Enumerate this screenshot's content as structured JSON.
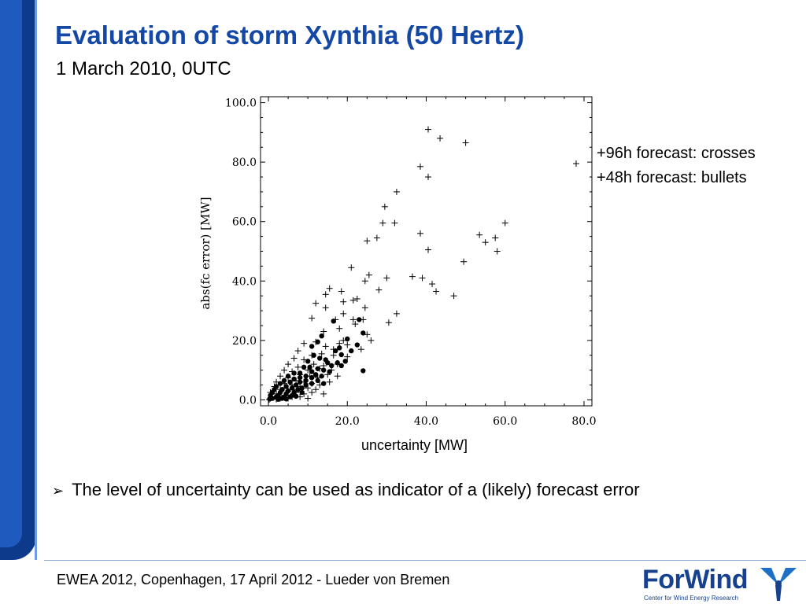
{
  "slide": {
    "title": "Evaluation of storm Xynthia (50 Hertz)",
    "subtitle": "1 March 2010, 0UTC",
    "legend_crosses": "+96h forecast: crosses",
    "legend_bullets": "+48h forecast: bullets",
    "bullet_arrow": "➢",
    "bullet_text": "The level of uncertainty can  be used as indicator of a (likely) forecast error",
    "footer": "EWEA 2012, Copenhagen, 17 April 2012  - Lueder von Bremen",
    "logo_name": "ForWind",
    "logo_tagline": "Center for Wind Energy Research",
    "accent_color": "#1448a6",
    "sidebar_color": "#0d3a8a"
  },
  "chart_data": {
    "type": "scatter",
    "xlabel": "uncertainty [MW]",
    "ylabel": "abs(fc error) [MW]",
    "xlim": [
      -2,
      82
    ],
    "ylim": [
      -2,
      102
    ],
    "xticks": [
      "0.0",
      "20.0",
      "40.0",
      "60.0",
      "80.0"
    ],
    "yticks": [
      "0.0",
      "20.0",
      "40.0",
      "60.0",
      "80.0",
      "100.0"
    ],
    "series": [
      {
        "marker": "cross",
        "points": [
          [
            40.5,
            91
          ],
          [
            43.5,
            88
          ],
          [
            50,
            86.5
          ],
          [
            78,
            79.5
          ],
          [
            38.5,
            78.5
          ],
          [
            40.5,
            75
          ],
          [
            32.5,
            70
          ],
          [
            29.5,
            65
          ],
          [
            29,
            59.5
          ],
          [
            32,
            59.5
          ],
          [
            38.5,
            56
          ],
          [
            53.5,
            55.5
          ],
          [
            55,
            53
          ],
          [
            57.5,
            54.5
          ],
          [
            60,
            59.5
          ],
          [
            27.5,
            54.5
          ],
          [
            25,
            53.5
          ],
          [
            40.5,
            50.5
          ],
          [
            58,
            50
          ],
          [
            49.5,
            46.5
          ],
          [
            21,
            44.5
          ],
          [
            36.5,
            41.5
          ],
          [
            39,
            41
          ],
          [
            30,
            41
          ],
          [
            25.5,
            42
          ],
          [
            24.5,
            40
          ],
          [
            41.5,
            39
          ],
          [
            42.5,
            36.5
          ],
          [
            47,
            35
          ],
          [
            15.5,
            37.5
          ],
          [
            14.5,
            35.5
          ],
          [
            18.5,
            36.5
          ],
          [
            28,
            37
          ],
          [
            22.5,
            34
          ],
          [
            21.5,
            33.5
          ],
          [
            19,
            33
          ],
          [
            12,
            32.5
          ],
          [
            14.5,
            31
          ],
          [
            24.5,
            31
          ],
          [
            32.5,
            29
          ],
          [
            19,
            29
          ],
          [
            17,
            27
          ],
          [
            11,
            27.5
          ],
          [
            21.5,
            27
          ],
          [
            24,
            27
          ],
          [
            30.5,
            26
          ],
          [
            22,
            25.5
          ],
          [
            18,
            24
          ],
          [
            14,
            23
          ],
          [
            25,
            22
          ],
          [
            26,
            20
          ],
          [
            19,
            20
          ],
          [
            18,
            19
          ],
          [
            20,
            18.5
          ],
          [
            9,
            19
          ],
          [
            12,
            19.5
          ],
          [
            14.5,
            18
          ],
          [
            16.5,
            17
          ],
          [
            23.5,
            17
          ],
          [
            7.5,
            16.5
          ],
          [
            11,
            15
          ],
          [
            13.5,
            15.5
          ],
          [
            16.5,
            15
          ],
          [
            20,
            14.5
          ],
          [
            6.5,
            14
          ],
          [
            9,
            13.5
          ],
          [
            11.5,
            12
          ],
          [
            14,
            11.5
          ],
          [
            17.5,
            12
          ],
          [
            5,
            12
          ],
          [
            7.5,
            11
          ],
          [
            10,
            10
          ],
          [
            13,
            10.5
          ],
          [
            16,
            10
          ],
          [
            4,
            10
          ],
          [
            6,
            9.5
          ],
          [
            8,
            8.5
          ],
          [
            10.5,
            8
          ],
          [
            12.5,
            7.5
          ],
          [
            15,
            8.5
          ],
          [
            17.5,
            8
          ],
          [
            3,
            8
          ],
          [
            5,
            7.5
          ],
          [
            7,
            6.5
          ],
          [
            9,
            6
          ],
          [
            11,
            5.5
          ],
          [
            13,
            5
          ],
          [
            15.5,
            6
          ],
          [
            2,
            6
          ],
          [
            4,
            5.5
          ],
          [
            6,
            5
          ],
          [
            8,
            4.5
          ],
          [
            10,
            4
          ],
          [
            12,
            3.5
          ],
          [
            1.5,
            4.5
          ],
          [
            3,
            3.5
          ],
          [
            5,
            3
          ],
          [
            7,
            2.5
          ],
          [
            9,
            2
          ],
          [
            11,
            2.5
          ],
          [
            0.5,
            2.5
          ],
          [
            2,
            2
          ],
          [
            4,
            1.5
          ],
          [
            6,
            1
          ],
          [
            8,
            1
          ],
          [
            10,
            0.5
          ],
          [
            1,
            1
          ],
          [
            3,
            0.5
          ],
          [
            5,
            0.5
          ],
          [
            0.5,
            0.5
          ],
          [
            2,
            0.2
          ],
          [
            0.2,
            0.1
          ],
          [
            6.5,
            3.5
          ],
          [
            14,
            2
          ]
        ]
      },
      {
        "marker": "bullet",
        "points": [
          [
            16.5,
            26.5
          ],
          [
            23,
            27
          ],
          [
            24,
            22.5
          ],
          [
            24,
            9.8
          ],
          [
            20,
            20.5
          ],
          [
            21,
            16.5
          ],
          [
            22.5,
            18.5
          ],
          [
            18,
            17.5
          ],
          [
            17,
            16.5
          ],
          [
            18.5,
            15.2
          ],
          [
            19.5,
            13
          ],
          [
            17.5,
            12.5
          ],
          [
            18.5,
            11.5
          ],
          [
            12.5,
            19.5
          ],
          [
            13.5,
            21.5
          ],
          [
            11,
            18
          ],
          [
            11.5,
            15
          ],
          [
            13,
            14
          ],
          [
            14.5,
            13.5
          ],
          [
            15,
            12.5
          ],
          [
            16,
            11.5
          ],
          [
            10,
            13
          ],
          [
            10.5,
            11
          ],
          [
            12.5,
            10.5
          ],
          [
            14,
            10
          ],
          [
            15.5,
            9.5
          ],
          [
            9,
            11
          ],
          [
            11,
            9.5
          ],
          [
            12,
            8.5
          ],
          [
            13.5,
            8
          ],
          [
            8,
            9
          ],
          [
            9.5,
            8
          ],
          [
            11,
            7.5
          ],
          [
            12.5,
            6.5
          ],
          [
            14,
            5.5
          ],
          [
            6.5,
            9
          ],
          [
            8,
            7.5
          ],
          [
            9.5,
            6.5
          ],
          [
            11,
            5.5
          ],
          [
            5,
            8
          ],
          [
            6.5,
            7
          ],
          [
            8,
            6
          ],
          [
            9.5,
            5
          ],
          [
            4,
            6.5
          ],
          [
            5.5,
            6
          ],
          [
            7,
            5
          ],
          [
            8.5,
            4
          ],
          [
            3,
            5.5
          ],
          [
            4.5,
            4.5
          ],
          [
            6,
            4
          ],
          [
            7.5,
            3.5
          ],
          [
            2,
            4.5
          ],
          [
            3.5,
            3.5
          ],
          [
            5,
            3
          ],
          [
            6.5,
            2.5
          ],
          [
            1.5,
            3.5
          ],
          [
            3,
            2.5
          ],
          [
            4.5,
            2
          ],
          [
            6,
            1.5
          ],
          [
            1,
            2.5
          ],
          [
            2.5,
            1.5
          ],
          [
            4,
            1
          ],
          [
            5.5,
            1
          ],
          [
            0.5,
            1.5
          ],
          [
            2,
            1
          ],
          [
            3.5,
            0.5
          ],
          [
            1,
            0.5
          ],
          [
            0.3,
            0.3
          ],
          [
            2.5,
            0.2
          ],
          [
            4.5,
            0.3
          ],
          [
            7,
            1.2
          ],
          [
            8.5,
            2.5
          ]
        ]
      }
    ]
  }
}
